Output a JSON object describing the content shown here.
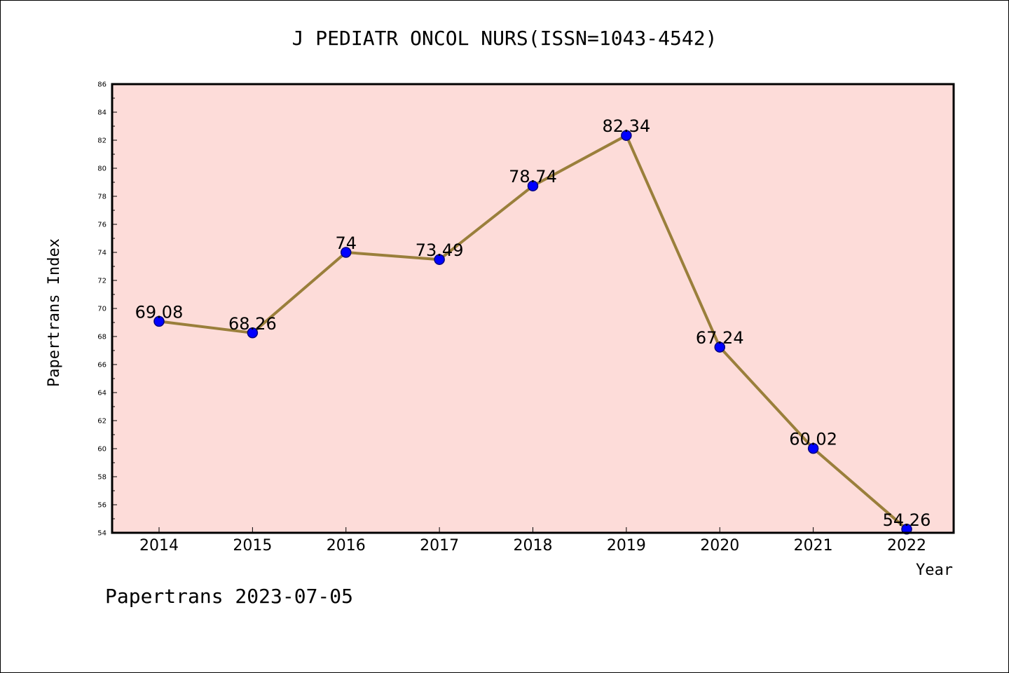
{
  "title": "J PEDIATR ONCOL NURS(ISSN=1043-4542)",
  "footer": "Papertrans 2023-07-05",
  "colors": {
    "plot_background": "#fddcd9",
    "line": "#9a7f3b",
    "marker": "#0000ff",
    "marker_edge": "#000080"
  },
  "chart_data": {
    "type": "line",
    "title": "J PEDIATR ONCOL NURS(ISSN=1043-4542)",
    "xlabel": "Year",
    "ylabel": "Papertrans Index",
    "categories": [
      "2014",
      "2015",
      "2016",
      "2017",
      "2018",
      "2019",
      "2020",
      "2021",
      "2022"
    ],
    "series": [
      {
        "values": [
          69.08,
          68.26,
          74,
          73.49,
          78.74,
          82.34,
          67.24,
          60.02,
          54.26
        ],
        "labels": [
          "69.08",
          "68.26",
          "74",
          "73.49",
          "78.74",
          "82.34",
          "67.24",
          "60.02",
          "54.26"
        ]
      }
    ],
    "ylim": [
      54,
      86
    ],
    "yticks": [
      54,
      56,
      58,
      60,
      62,
      64,
      66,
      68,
      70,
      72,
      74,
      76,
      78,
      80,
      82,
      84,
      86
    ],
    "grid": false,
    "legend": "none"
  }
}
